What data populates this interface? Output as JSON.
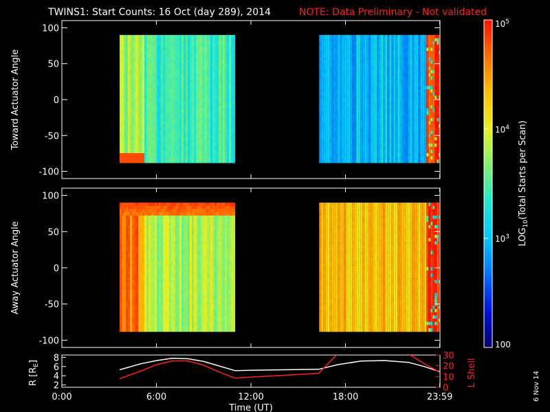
{
  "title": {
    "main": "TWINS1: Start Counts: 16 Oct (day 289), 2014",
    "note": "NOTE: Data Preliminary - Not validated"
  },
  "date_stamp": "6 Nov 14",
  "colorbar": {
    "label": "LOG10(Total Starts per Scan)",
    "label_parts": [
      "LOG",
      "10",
      "(Total Starts per Scan)"
    ],
    "scale": "log",
    "range": [
      100,
      100000
    ],
    "tick_labels": [
      {
        "base": "10",
        "exp": "5"
      },
      {
        "base": "10",
        "exp": "4"
      },
      {
        "base": "10",
        "exp": "3"
      },
      {
        "plain": "100"
      }
    ],
    "tick_values": [
      100000,
      10000,
      1000,
      100
    ],
    "colormap": [
      "#08006e",
      "#0010e0",
      "#0070ff",
      "#00c8ff",
      "#20e8d0",
      "#80f070",
      "#e8f020",
      "#ffc000",
      "#ff7000",
      "#ff1000"
    ]
  },
  "chart_data": [
    {
      "type": "heatmap",
      "ylabel": "Toward Actuator Angle",
      "xlim": [
        0,
        24
      ],
      "ylim": [
        -110,
        110
      ],
      "y_ticks": [
        100,
        50,
        0,
        -50,
        -100
      ],
      "y_tick_labels": [
        "100",
        "50",
        "0",
        "-50",
        "-100"
      ],
      "data_y_range": [
        -88,
        90
      ],
      "segments": [
        {
          "x_start": "3:40",
          "x_end": "11:00"
        },
        {
          "x_start": "16:20",
          "x_end": "23:59"
        }
      ],
      "approx_log_counts": {
        "seg1_early": 3.8,
        "seg1_main": 3.4,
        "seg1_bottom_edge": 4.8,
        "seg2_main": 3.0,
        "seg2_end": 4.9
      }
    },
    {
      "type": "heatmap",
      "ylabel": "Away Actuator Angle",
      "xlim": [
        0,
        24
      ],
      "ylim": [
        -110,
        110
      ],
      "y_ticks": [
        100,
        50,
        0,
        -50,
        -100
      ],
      "y_tick_labels": [
        "100",
        "50",
        "0",
        "-50",
        "-100"
      ],
      "data_y_range": [
        -88,
        90
      ],
      "segments": [
        {
          "x_start": "3:40",
          "x_end": "11:00"
        },
        {
          "x_start": "16:20",
          "x_end": "23:59"
        }
      ],
      "approx_log_counts": {
        "seg1_early": 4.6,
        "seg1_main": 3.8,
        "seg1_top_edge": 4.8,
        "seg2_main": 4.3,
        "seg2_end": 4.9
      }
    },
    {
      "type": "line",
      "ylabel_left": "R [RE]",
      "ylabel_left_parts": [
        "R [R",
        "E",
        "]"
      ],
      "ylabel_right": "L Shell",
      "xlabel": "Time (UT)",
      "xlim": [
        0,
        24
      ],
      "x_tick_labels": [
        "0:00",
        "6:00",
        "12:00",
        "18:00",
        "23:59"
      ],
      "x_ticks": [
        0,
        6,
        12,
        18,
        23.983
      ],
      "ylim_left": [
        1.5,
        8.5
      ],
      "y_ticks_left": [
        2,
        4,
        6,
        8
      ],
      "ylim_right": [
        0,
        30
      ],
      "y_ticks_right": [
        0,
        10,
        20,
        30
      ],
      "series": [
        {
          "name": "R [RE]",
          "color": "#ffffff",
          "axis": "left",
          "x": [
            3.67,
            5.0,
            6.0,
            7.0,
            8.0,
            9.0,
            10.0,
            11.0,
            12.0,
            14.0,
            16.3,
            17.5,
            19.0,
            20.5,
            22.0,
            23.0,
            23.98
          ],
          "y": [
            5.3,
            6.6,
            7.3,
            7.8,
            7.7,
            7.1,
            6.1,
            5.1,
            5.2,
            5.3,
            5.4,
            6.4,
            7.2,
            7.3,
            6.9,
            6.0,
            4.9
          ]
        },
        {
          "name": "L Shell",
          "color": "#ff2020",
          "axis": "right",
          "x": [
            3.67,
            5.0,
            6.0,
            7.0,
            8.0,
            9.0,
            10.0,
            11.0,
            12.0,
            14.0,
            16.3,
            17.5,
            22.0,
            23.0,
            23.98
          ],
          "y": [
            8,
            15,
            21,
            24.5,
            24.5,
            20.5,
            14,
            8.5,
            9.5,
            11,
            13,
            31,
            31,
            22,
            14
          ]
        }
      ]
    }
  ]
}
